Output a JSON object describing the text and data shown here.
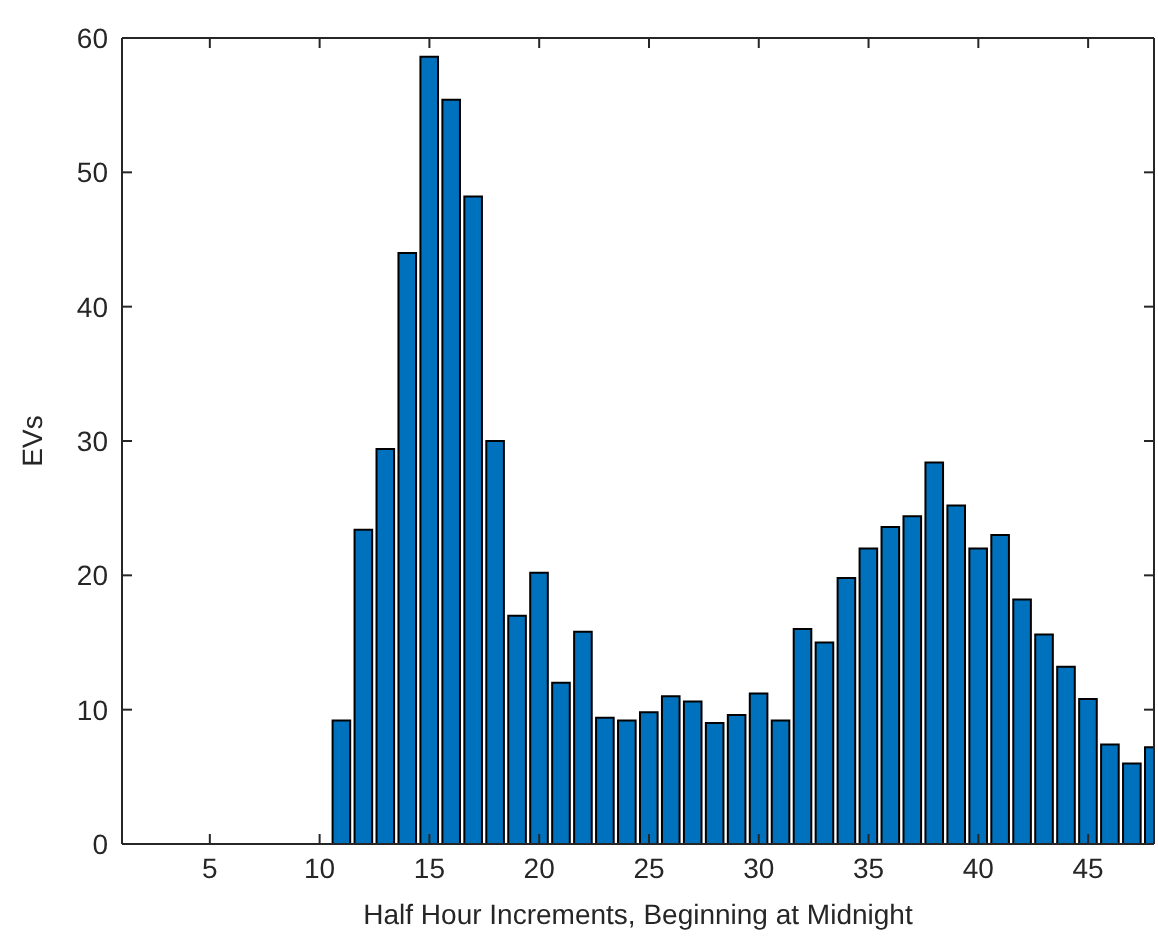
{
  "chart_data": {
    "type": "bar",
    "xlabel": "Half Hour Increments, Beginning at Midnight",
    "ylabel": "EVs",
    "x": [
      1,
      2,
      3,
      4,
      5,
      6,
      7,
      8,
      9,
      10,
      11,
      12,
      13,
      14,
      15,
      16,
      17,
      18,
      19,
      20,
      21,
      22,
      23,
      24,
      25,
      26,
      27,
      28,
      29,
      30,
      31,
      32,
      33,
      34,
      35,
      36,
      37,
      38,
      39,
      40,
      41,
      42,
      43,
      44,
      45,
      46,
      47,
      48
    ],
    "values": [
      0,
      0,
      0,
      0,
      0,
      0,
      0,
      0,
      0,
      0,
      9.2,
      23.4,
      29.4,
      44,
      58.6,
      55.4,
      48.2,
      30,
      17,
      20.2,
      12,
      15.8,
      9.4,
      9.2,
      9.8,
      11,
      10.6,
      9,
      9.6,
      11.2,
      9.2,
      16,
      15,
      19.8,
      22,
      23.6,
      24.4,
      28.4,
      25.2,
      22,
      23,
      18.2,
      15.6,
      13.2,
      10.8,
      7.4,
      6,
      7.2
    ],
    "color": "#0072bd",
    "xlim": [
      1,
      48
    ],
    "xticks": [
      5,
      10,
      15,
      20,
      25,
      30,
      35,
      40,
      45
    ],
    "ylim": [
      0,
      60
    ],
    "yticks": [
      0,
      10,
      20,
      30,
      40,
      50,
      60
    ]
  }
}
